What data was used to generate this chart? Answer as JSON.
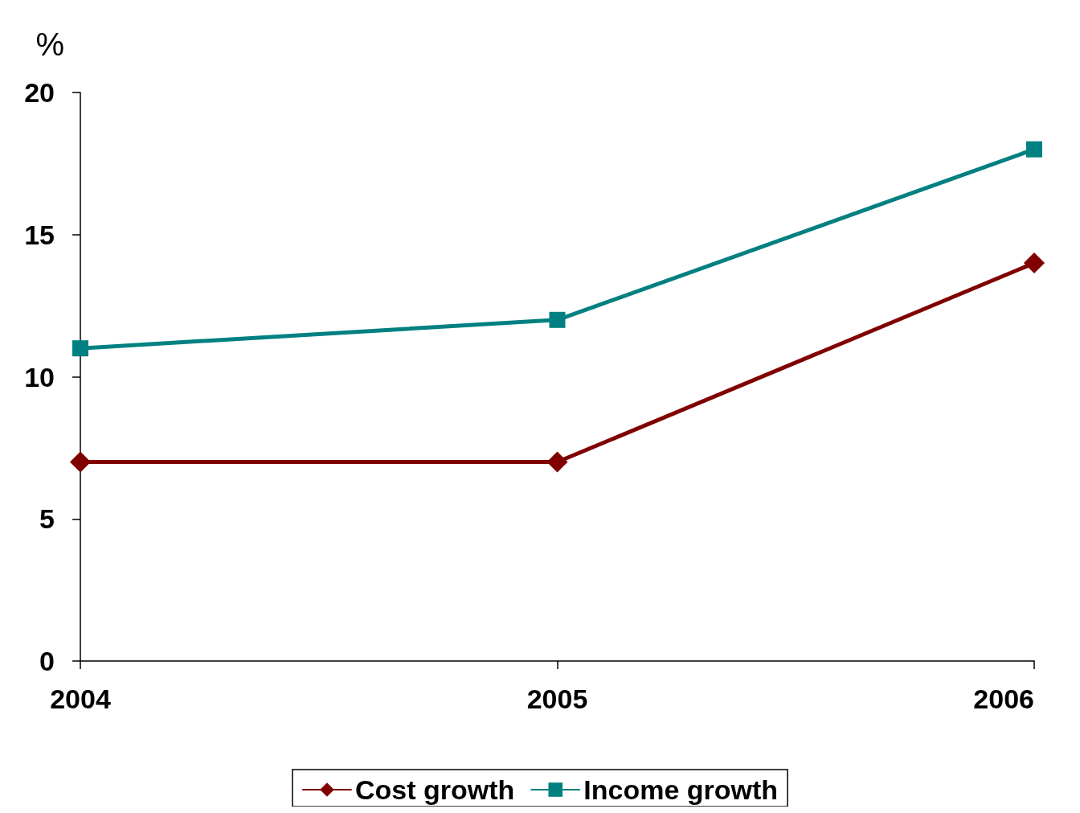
{
  "chart_data": {
    "type": "line",
    "ylabel": "%",
    "categories": [
      "2004",
      "2005",
      "2006"
    ],
    "series": [
      {
        "name": "Cost growth",
        "color": "#800000",
        "marker": "diamond",
        "values": [
          7,
          7,
          14
        ]
      },
      {
        "name": "Income growth",
        "color": "#008080",
        "marker": "square",
        "values": [
          11,
          12,
          18
        ]
      }
    ],
    "ylim": [
      0,
      20
    ],
    "yticks": [
      0,
      5,
      10,
      15,
      20
    ],
    "grid": false,
    "legend": "bottom",
    "line_style": "solid"
  }
}
